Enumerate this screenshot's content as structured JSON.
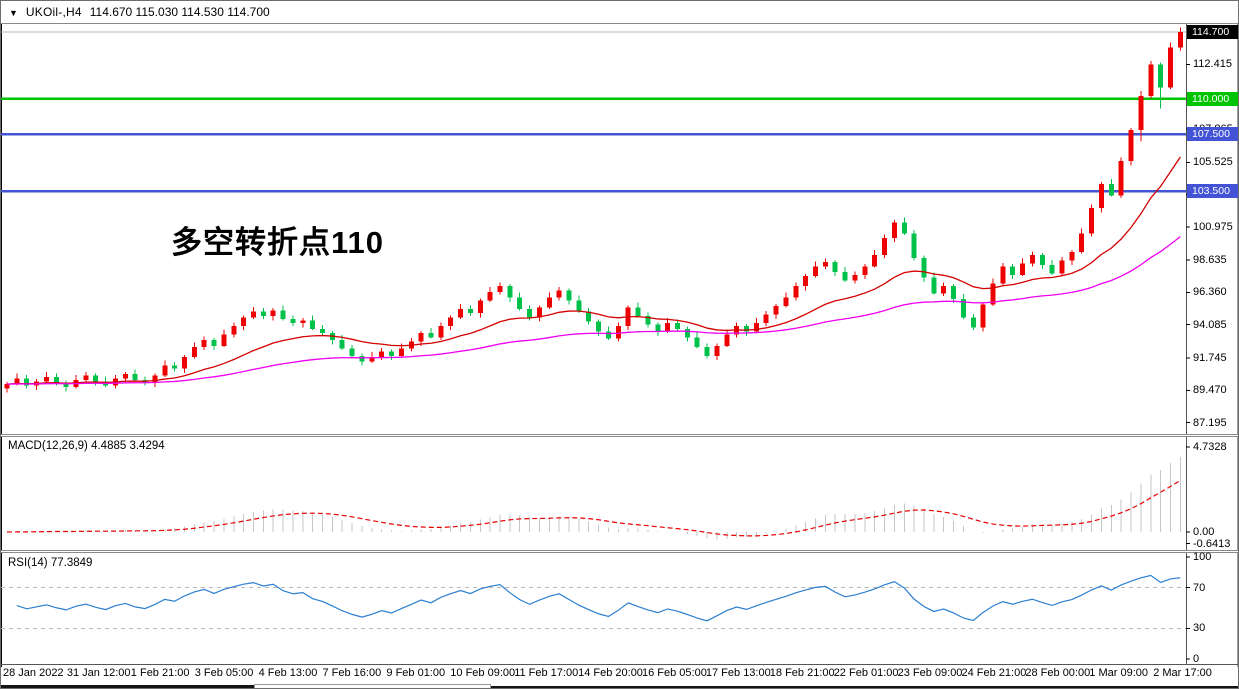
{
  "header": {
    "symbol_period": "UKOil-,H4",
    "quote": "114.670 115.030 114.530 114.700",
    "dropdown_glyph": "▼"
  },
  "annotation": {
    "text": "多空转折点110",
    "color": "#fe0000"
  },
  "main_panel": {
    "y_ticks": [
      "112.415",
      "107.865",
      "105.525",
      "103.250",
      "100.975",
      "98.635",
      "96.360",
      "94.085",
      "91.745",
      "89.470",
      "87.195"
    ],
    "price_tags": [
      {
        "label": "114.700",
        "value": 114.7,
        "bg": "#000000"
      },
      {
        "label": "110.000",
        "value": 110.0,
        "bg": "#00c400"
      },
      {
        "label": "107.500",
        "value": 107.5,
        "bg": "#4353d6"
      },
      {
        "label": "103.500",
        "value": 103.5,
        "bg": "#4353d6"
      }
    ],
    "level_lines": [
      {
        "value": 110.0,
        "color": "#00c400",
        "width": 2.5
      },
      {
        "value": 107.5,
        "color": "#4353d6",
        "width": 2.5
      },
      {
        "value": 103.5,
        "color": "#4353d6",
        "width": 2.5
      }
    ],
    "current_price_line": {
      "value": 114.7,
      "color": "#b4b4b4"
    }
  },
  "macd_panel": {
    "title": "MACD(12,26,9)",
    "values": "4.4885 3.4294",
    "axis_ticks": [
      "4.7328",
      "0.00",
      "-0.6413"
    ],
    "histogram_color": "#c6c6c6",
    "signal_color": "#e80000"
  },
  "rsi_panel": {
    "title": "RSI(14)",
    "value": "77.3849",
    "axis_ticks": [
      "100",
      "70",
      "30",
      "0"
    ],
    "level_values": [
      70,
      30
    ],
    "line_color": "#2b7fd0",
    "level_color": "#b8b8b8"
  },
  "chart_data": {
    "type": "candlestick",
    "symbol": "UKOil-",
    "timeframe": "H4",
    "title": "UKOil- H4 candlestick chart with MACD(12,26,9) and RSI(14)",
    "ylim": [
      87.195,
      115.2
    ],
    "bull_color": "#ef0000",
    "bear_color": "#00c24b",
    "x_labels": [
      "28 Jan 2022",
      "31 Jan 12:00",
      "1 Feb 21:00",
      "3 Feb 05:00",
      "4 Feb 13:00",
      "7 Feb 16:00",
      "9 Feb 01:00",
      "10 Feb 09:00",
      "11 Feb 17:00",
      "14 Feb 20:00",
      "16 Feb 05:00",
      "17 Feb 13:00",
      "18 Feb 21:00",
      "22 Feb 01:00",
      "23 Feb 09:00",
      "24 Feb 21:00",
      "28 Feb 00:00",
      "1 Mar 09:00",
      "2 Mar 17:00"
    ],
    "moving_averages": [
      {
        "period": 18,
        "color": "#d40000"
      },
      {
        "period": 55,
        "color": "#f000f0"
      }
    ],
    "macd_params": [
      12,
      26,
      9
    ],
    "rsi_period": 14,
    "candles": [
      [
        89.6,
        90.05,
        89.3,
        89.9
      ],
      [
        89.9,
        90.65,
        89.8,
        90.3
      ],
      [
        90.3,
        90.55,
        89.6,
        89.8
      ],
      [
        89.8,
        90.25,
        89.5,
        90.1
      ],
      [
        90.1,
        90.75,
        90.0,
        90.4
      ],
      [
        90.4,
        90.65,
        89.8,
        90.0
      ],
      [
        90.0,
        90.15,
        89.4,
        89.7
      ],
      [
        89.7,
        90.55,
        89.6,
        90.2
      ],
      [
        90.2,
        90.75,
        90.0,
        90.5
      ],
      [
        90.5,
        90.65,
        89.8,
        90.1
      ],
      [
        90.1,
        90.45,
        89.7,
        89.8
      ],
      [
        89.8,
        90.55,
        89.6,
        90.3
      ],
      [
        90.3,
        90.75,
        90.0,
        90.6
      ],
      [
        90.6,
        90.95,
        90.1,
        90.2
      ],
      [
        90.2,
        90.45,
        89.8,
        90.0
      ],
      [
        90.0,
        90.65,
        89.7,
        90.5
      ],
      [
        90.5,
        91.55,
        90.4,
        91.2
      ],
      [
        91.2,
        91.45,
        90.8,
        91.0
      ],
      [
        91.0,
        91.95,
        90.7,
        91.8
      ],
      [
        91.8,
        92.85,
        91.7,
        92.5
      ],
      [
        92.5,
        93.25,
        92.3,
        93.0
      ],
      [
        93.0,
        93.15,
        92.3,
        92.6
      ],
      [
        92.6,
        93.75,
        92.5,
        93.4
      ],
      [
        93.4,
        94.25,
        93.2,
        94.0
      ],
      [
        94.0,
        94.75,
        93.7,
        94.6
      ],
      [
        94.6,
        95.35,
        94.5,
        95.0
      ],
      [
        95.0,
        95.25,
        94.5,
        94.7
      ],
      [
        94.7,
        95.25,
        94.4,
        95.1
      ],
      [
        95.1,
        95.45,
        94.4,
        94.5
      ],
      [
        94.5,
        94.75,
        94.0,
        94.2
      ],
      [
        94.2,
        94.55,
        93.9,
        94.4
      ],
      [
        94.4,
        94.75,
        93.7,
        93.8
      ],
      [
        93.8,
        94.05,
        93.3,
        93.5
      ],
      [
        93.5,
        93.65,
        92.7,
        93.0
      ],
      [
        93.0,
        93.35,
        92.3,
        92.4
      ],
      [
        92.4,
        92.65,
        91.7,
        91.9
      ],
      [
        91.9,
        92.05,
        91.2,
        91.5
      ],
      [
        91.5,
        92.15,
        91.4,
        91.8
      ],
      [
        91.8,
        92.45,
        91.6,
        92.2
      ],
      [
        92.2,
        92.35,
        91.6,
        91.9
      ],
      [
        91.9,
        92.75,
        91.8,
        92.4
      ],
      [
        92.4,
        93.15,
        92.2,
        92.9
      ],
      [
        92.9,
        93.65,
        92.6,
        93.5
      ],
      [
        93.5,
        93.85,
        93.1,
        93.2
      ],
      [
        93.2,
        94.25,
        93.0,
        94.0
      ],
      [
        94.0,
        94.75,
        93.7,
        94.6
      ],
      [
        94.6,
        95.55,
        94.5,
        95.2
      ],
      [
        95.2,
        95.45,
        94.7,
        94.9
      ],
      [
        94.9,
        95.95,
        94.6,
        95.8
      ],
      [
        95.8,
        96.75,
        95.7,
        96.4
      ],
      [
        96.4,
        97.05,
        96.2,
        96.8
      ],
      [
        96.8,
        96.95,
        95.7,
        96.0
      ],
      [
        96.0,
        96.35,
        95.1,
        95.2
      ],
      [
        95.2,
        95.45,
        94.4,
        94.6
      ],
      [
        94.6,
        95.45,
        94.3,
        95.3
      ],
      [
        95.3,
        96.35,
        95.2,
        96.0
      ],
      [
        96.0,
        96.75,
        95.8,
        96.5
      ],
      [
        96.5,
        96.65,
        95.5,
        95.8
      ],
      [
        95.8,
        96.15,
        94.9,
        95.0
      ],
      [
        95.0,
        95.25,
        94.1,
        94.3
      ],
      [
        94.3,
        94.45,
        93.3,
        93.6
      ],
      [
        93.6,
        93.95,
        93.0,
        93.1
      ],
      [
        93.1,
        94.25,
        92.9,
        94.0
      ],
      [
        94.0,
        95.45,
        93.7,
        95.3
      ],
      [
        95.3,
        95.65,
        94.6,
        94.7
      ],
      [
        94.7,
        94.95,
        93.9,
        94.1
      ],
      [
        94.1,
        94.25,
        93.3,
        93.6
      ],
      [
        93.6,
        94.55,
        93.5,
        94.2
      ],
      [
        94.2,
        94.45,
        93.6,
        93.8
      ],
      [
        93.8,
        93.95,
        92.9,
        93.2
      ],
      [
        93.2,
        93.55,
        92.4,
        92.5
      ],
      [
        92.5,
        92.75,
        91.7,
        91.9
      ],
      [
        91.9,
        92.75,
        91.6,
        92.6
      ],
      [
        92.6,
        93.75,
        92.5,
        93.4
      ],
      [
        93.4,
        94.25,
        93.2,
        94.0
      ],
      [
        94.0,
        94.15,
        93.3,
        93.6
      ],
      [
        93.6,
        94.55,
        93.5,
        94.2
      ],
      [
        94.2,
        95.05,
        94.0,
        94.8
      ],
      [
        94.8,
        95.55,
        94.5,
        95.4
      ],
      [
        95.4,
        96.35,
        95.3,
        96.0
      ],
      [
        96.0,
        97.05,
        95.8,
        96.8
      ],
      [
        96.8,
        97.65,
        96.5,
        97.5
      ],
      [
        97.5,
        98.55,
        97.4,
        98.2
      ],
      [
        98.2,
        98.75,
        98.0,
        98.5
      ],
      [
        98.5,
        98.65,
        97.5,
        97.8
      ],
      [
        97.8,
        98.15,
        97.1,
        97.2
      ],
      [
        97.2,
        97.85,
        97.0,
        97.6
      ],
      [
        97.6,
        98.35,
        97.3,
        98.2
      ],
      [
        98.2,
        99.35,
        98.1,
        99.0
      ],
      [
        99.0,
        100.45,
        98.8,
        100.2
      ],
      [
        100.2,
        101.45,
        99.9,
        101.3
      ],
      [
        101.3,
        101.65,
        100.4,
        100.5
      ],
      [
        100.5,
        100.75,
        98.6,
        98.8
      ],
      [
        98.8,
        98.95,
        97.1,
        97.4
      ],
      [
        97.4,
        97.75,
        96.2,
        96.3
      ],
      [
        96.3,
        97.05,
        96.1,
        96.8
      ],
      [
        96.8,
        96.95,
        95.6,
        95.9
      ],
      [
        95.9,
        96.25,
        94.5,
        94.6
      ],
      [
        94.6,
        94.85,
        93.7,
        93.9
      ],
      [
        93.9,
        95.65,
        93.6,
        95.5
      ],
      [
        95.5,
        97.35,
        95.4,
        97.0
      ],
      [
        97.0,
        98.45,
        96.8,
        98.2
      ],
      [
        98.2,
        98.35,
        97.3,
        97.6
      ],
      [
        97.6,
        98.75,
        97.5,
        98.4
      ],
      [
        98.4,
        99.25,
        98.2,
        99.0
      ],
      [
        99.0,
        99.15,
        98.0,
        98.3
      ],
      [
        98.3,
        98.65,
        97.6,
        97.7
      ],
      [
        97.7,
        98.85,
        97.5,
        98.6
      ],
      [
        98.6,
        99.35,
        98.3,
        99.2
      ],
      [
        99.2,
        100.85,
        99.1,
        100.5
      ],
      [
        100.5,
        102.55,
        100.3,
        102.3
      ],
      [
        102.3,
        104.15,
        102.0,
        104.0
      ],
      [
        104.0,
        104.35,
        103.1,
        103.2
      ],
      [
        103.2,
        105.85,
        103.0,
        105.6
      ],
      [
        105.6,
        107.95,
        105.3,
        107.8
      ],
      [
        107.8,
        110.55,
        107.0,
        110.2
      ],
      [
        110.2,
        112.65,
        110.0,
        112.4
      ],
      [
        112.4,
        112.55,
        109.3,
        110.8
      ],
      [
        110.8,
        113.95,
        110.7,
        113.6
      ],
      [
        113.6,
        115.03,
        113.4,
        114.7
      ]
    ]
  }
}
